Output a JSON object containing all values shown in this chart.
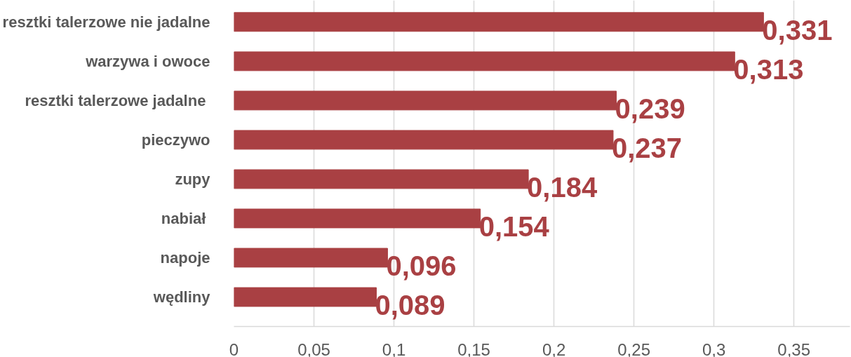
{
  "chart_data": {
    "type": "bar",
    "orientation": "horizontal",
    "categories": [
      "resztki talerzowe nie jadalne",
      "warzywa i owoce",
      "resztki talerzowe jadalne ",
      "pieczywo",
      "zupy",
      "nabiał ",
      "napoje",
      "wędliny"
    ],
    "values": [
      0.331,
      0.313,
      0.239,
      0.237,
      0.184,
      0.154,
      0.096,
      0.089
    ],
    "value_labels": [
      "0,331",
      "0,313",
      "0,239",
      "0,237",
      "0,184",
      "0,154",
      "0,096",
      "0,089"
    ],
    "color": "#a94043",
    "xlim": [
      0,
      0.385
    ],
    "xticks": [
      0,
      {
        "value": 0.05,
        "label": "0,05"
      },
      {
        "value": 0.1,
        "label": "0,1"
      },
      {
        "value": 0.15,
        "label": "0,15"
      },
      {
        "value": 0.2,
        "label": "0,2"
      },
      {
        "value": 0.25,
        "label": "0,25"
      },
      {
        "value": 0.3,
        "label": "0,3"
      },
      {
        "value": 0.35,
        "label": "0,35"
      }
    ],
    "grid": "x"
  }
}
